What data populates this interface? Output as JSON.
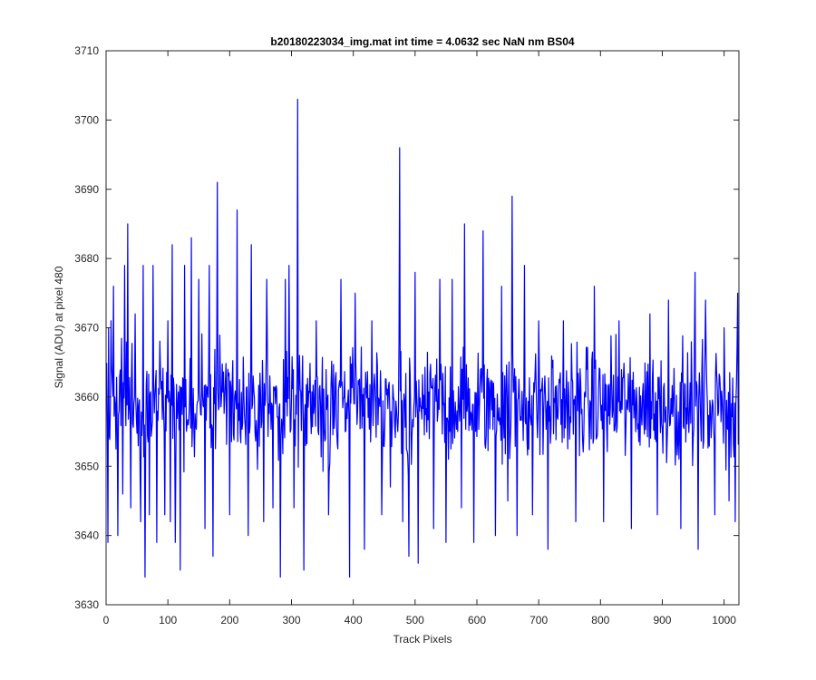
{
  "chart_data": {
    "type": "line",
    "title": "b20180223034_img.mat int time = 4.0632 sec  NaN nm BS04",
    "xlabel": "Track Pixels",
    "ylabel": "Signal (ADU) at pixel 480",
    "xlim": [
      0,
      1024
    ],
    "ylim": [
      3630,
      3710
    ],
    "x_ticks": [
      0,
      100,
      200,
      300,
      400,
      500,
      600,
      700,
      800,
      900,
      1000
    ],
    "y_ticks": [
      3630,
      3640,
      3650,
      3660,
      3670,
      3680,
      3690,
      3700,
      3710
    ],
    "grid": false,
    "line_color": "#0000ff",
    "series": [
      {
        "x_start": 1,
        "x_step": 1,
        "baseline": 3659,
        "noise_range": 9,
        "point_count": 1024,
        "peaks": [
          [
            3,
            3639
          ],
          [
            4,
            3670
          ],
          [
            8,
            3671
          ],
          [
            12,
            3676
          ],
          [
            19,
            3640
          ],
          [
            27,
            3646
          ],
          [
            30,
            3679
          ],
          [
            35,
            3685
          ],
          [
            40,
            3644
          ],
          [
            47,
            3672
          ],
          [
            56,
            3642
          ],
          [
            60,
            3679
          ],
          [
            63,
            3634
          ],
          [
            70,
            3643
          ],
          [
            76,
            3679
          ],
          [
            82,
            3639
          ],
          [
            95,
            3643
          ],
          [
            100,
            3671
          ],
          [
            104,
            3642
          ],
          [
            107,
            3682
          ],
          [
            112,
            3639
          ],
          [
            120,
            3635
          ],
          [
            127,
            3679
          ],
          [
            138,
            3683
          ],
          [
            150,
            3677
          ],
          [
            160,
            3641
          ],
          [
            167,
            3679
          ],
          [
            173,
            3637
          ],
          [
            180,
            3691
          ],
          [
            200,
            3643
          ],
          [
            212,
            3687
          ],
          [
            230,
            3640
          ],
          [
            235,
            3682
          ],
          [
            255,
            3642
          ],
          [
            260,
            3677
          ],
          [
            270,
            3644
          ],
          [
            282,
            3634
          ],
          [
            290,
            3677
          ],
          [
            296,
            3679
          ],
          [
            304,
            3644
          ],
          [
            310,
            3703
          ],
          [
            320,
            3635
          ],
          [
            340,
            3671
          ],
          [
            360,
            3643
          ],
          [
            380,
            3677
          ],
          [
            394,
            3634
          ],
          [
            403,
            3675
          ],
          [
            418,
            3638
          ],
          [
            430,
            3671
          ],
          [
            446,
            3643
          ],
          [
            460,
            3647
          ],
          [
            475,
            3696
          ],
          [
            480,
            3642
          ],
          [
            490,
            3637
          ],
          [
            500,
            3678
          ],
          [
            505,
            3636
          ],
          [
            530,
            3641
          ],
          [
            540,
            3677
          ],
          [
            550,
            3639
          ],
          [
            560,
            3677
          ],
          [
            575,
            3644
          ],
          [
            580,
            3685
          ],
          [
            595,
            3639
          ],
          [
            610,
            3684
          ],
          [
            630,
            3640
          ],
          [
            640,
            3676
          ],
          [
            650,
            3645
          ],
          [
            657,
            3689
          ],
          [
            665,
            3640
          ],
          [
            677,
            3679
          ],
          [
            690,
            3643
          ],
          [
            700,
            3671
          ],
          [
            715,
            3638
          ],
          [
            740,
            3671
          ],
          [
            760,
            3642
          ],
          [
            790,
            3676
          ],
          [
            805,
            3642
          ],
          [
            830,
            3671
          ],
          [
            850,
            3641
          ],
          [
            880,
            3672
          ],
          [
            892,
            3643
          ],
          [
            910,
            3674
          ],
          [
            930,
            3641
          ],
          [
            953,
            3678
          ],
          [
            958,
            3638
          ],
          [
            970,
            3674
          ],
          [
            985,
            3643
          ],
          [
            1000,
            3670
          ],
          [
            1008,
            3645
          ],
          [
            1018,
            3642
          ],
          [
            1022,
            3675
          ]
        ]
      }
    ]
  }
}
